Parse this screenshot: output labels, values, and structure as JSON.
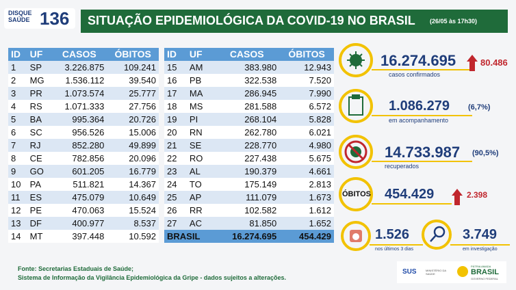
{
  "header": {
    "logo_top": "DISQUE",
    "logo_bottom": "SAÚDE",
    "logo_number": "136",
    "title": "SITUAÇÃO EPIDEMIOLÓGICA DA COVID-19 NO BRASIL",
    "date": "(26/05 às 17h30)"
  },
  "tables": [
    {
      "columns": [
        "ID",
        "UF",
        "CASOS",
        "ÓBITOS"
      ],
      "rows": [
        [
          "1",
          "SP",
          "3.226.875",
          "109.241"
        ],
        [
          "2",
          "MG",
          "1.536.112",
          "39.540"
        ],
        [
          "3",
          "PR",
          "1.073.574",
          "25.777"
        ],
        [
          "4",
          "RS",
          "1.071.333",
          "27.756"
        ],
        [
          "5",
          "BA",
          "995.364",
          "20.726"
        ],
        [
          "6",
          "SC",
          "956.526",
          "15.006"
        ],
        [
          "7",
          "RJ",
          "852.280",
          "49.899"
        ],
        [
          "8",
          "CE",
          "782.856",
          "20.096"
        ],
        [
          "9",
          "GO",
          "601.205",
          "16.779"
        ],
        [
          "10",
          "PA",
          "511.821",
          "14.367"
        ],
        [
          "11",
          "ES",
          "475.079",
          "10.649"
        ],
        [
          "12",
          "PE",
          "470.063",
          "15.524"
        ],
        [
          "13",
          "DF",
          "400.977",
          "8.537"
        ],
        [
          "14",
          "MT",
          "397.448",
          "10.592"
        ]
      ]
    },
    {
      "columns": [
        "ID",
        "UF",
        "CASOS",
        "ÓBITOS"
      ],
      "rows": [
        [
          "15",
          "AM",
          "383.980",
          "12.943"
        ],
        [
          "16",
          "PB",
          "322.538",
          "7.520"
        ],
        [
          "17",
          "MA",
          "286.945",
          "7.990"
        ],
        [
          "18",
          "MS",
          "281.588",
          "6.572"
        ],
        [
          "19",
          "PI",
          "268.104",
          "5.828"
        ],
        [
          "20",
          "RN",
          "262.780",
          "6.021"
        ],
        [
          "21",
          "SE",
          "228.770",
          "4.980"
        ],
        [
          "22",
          "RO",
          "227.438",
          "5.675"
        ],
        [
          "23",
          "AL",
          "190.379",
          "4.661"
        ],
        [
          "24",
          "TO",
          "175.149",
          "2.813"
        ],
        [
          "25",
          "AP",
          "111.079",
          "1.673"
        ],
        [
          "26",
          "RR",
          "102.582",
          "1.612"
        ],
        [
          "27",
          "AC",
          "81.850",
          "1.652"
        ]
      ],
      "total": [
        "BRASIL",
        "16.274.695",
        "454.429"
      ]
    }
  ],
  "stats": {
    "confirmed": {
      "value": "16.274.695",
      "new": "80.486",
      "label": "casos confirmados"
    },
    "monitoring": {
      "value": "1.086.279",
      "percent": "(6,7%)",
      "label": "em acompanhamento"
    },
    "recovered": {
      "value": "14.733.987",
      "percent": "(90,5%)",
      "label": "recuperados"
    },
    "deaths": {
      "badge": "ÓBITOS",
      "value": "454.429",
      "new": "2.398"
    },
    "recent": {
      "value": "1.526",
      "label": "nos últimos 3 dias"
    },
    "investigation": {
      "value": "3.749",
      "label": "em investigação"
    }
  },
  "footer": {
    "source": "Fonte: Secretarias Estaduais de Saúde;",
    "system": "Sistema de Informação da Vigilância Epidemiológica da Gripe - dados sujeitos a alterações."
  },
  "logos": {
    "sus": "SUS",
    "ministry": "MINISTÉRIO DA SAÚDE",
    "motto": "PÁTRIA AMADA",
    "country": "BRASIL",
    "gov": "GOVERNO FEDERAL"
  }
}
